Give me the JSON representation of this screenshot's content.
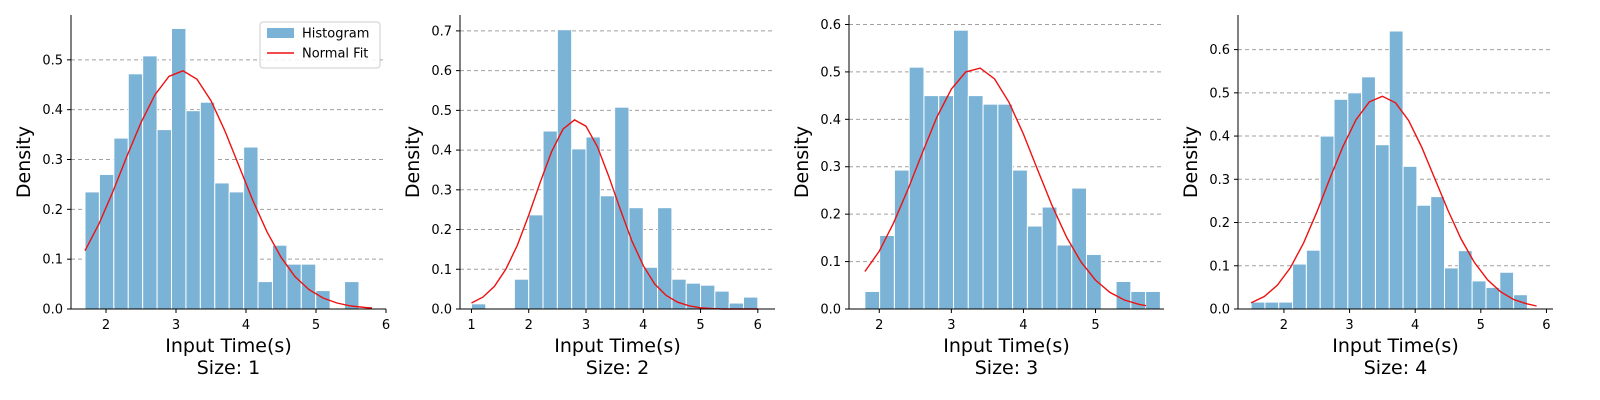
{
  "colors": {
    "bar": "#7ab3d6",
    "fit": "#ee1111",
    "grid": "#a0a0a0",
    "axis": "#000000"
  },
  "legend": {
    "histogram": "Histogram",
    "normal_fit": "Normal Fit",
    "placement": "upper-right of first panel"
  },
  "chart_data": [
    {
      "type": "bar",
      "title": "Size: 1",
      "xlabel": "Input Time(s)",
      "ylabel": "Density",
      "xlim": [
        1.5,
        6.0
      ],
      "ylim": [
        0,
        0.59
      ],
      "xticks": [
        2,
        3,
        4,
        5,
        6
      ],
      "yticks": [
        0.0,
        0.1,
        0.2,
        0.3,
        0.4,
        0.5
      ],
      "ytick_labels": [
        "0.0",
        "0.1",
        "0.2",
        "0.3",
        "0.4",
        "0.5"
      ],
      "grid": "y dashed",
      "bin_start": 1.7,
      "bin_width": 0.206,
      "values": [
        0.235,
        0.27,
        0.343,
        0.472,
        0.508,
        0.36,
        0.563,
        0.398,
        0.415,
        0.253,
        0.235,
        0.325,
        0.055,
        0.128,
        0.09,
        0.09,
        0.037,
        0.0,
        0.055
      ],
      "fit_x": [
        1.7,
        1.9,
        2.1,
        2.3,
        2.5,
        2.7,
        2.9,
        3.1,
        3.3,
        3.5,
        3.7,
        3.9,
        4.1,
        4.3,
        4.5,
        4.7,
        4.9,
        5.1,
        5.3,
        5.5,
        5.7,
        5.8
      ],
      "fit_y": [
        0.117,
        0.171,
        0.236,
        0.307,
        0.374,
        0.43,
        0.467,
        0.478,
        0.461,
        0.418,
        0.357,
        0.287,
        0.217,
        0.155,
        0.104,
        0.065,
        0.039,
        0.022,
        0.012,
        0.006,
        0.003,
        0.002
      ],
      "show_legend": true
    },
    {
      "type": "bar",
      "title": "Size: 2",
      "xlabel": "Input Time(s)",
      "ylabel": "Density",
      "xlim": [
        0.8,
        6.3
      ],
      "ylim": [
        0,
        0.74
      ],
      "xticks": [
        1,
        2,
        3,
        4,
        5,
        6
      ],
      "yticks": [
        0.0,
        0.1,
        0.2,
        0.3,
        0.4,
        0.5,
        0.6,
        0.7
      ],
      "ytick_labels": [
        "0.0",
        "0.1",
        "0.2",
        "0.3",
        "0.4",
        "0.5",
        "0.6",
        "0.7"
      ],
      "grid": "y dashed",
      "bin_start": 1.0,
      "bin_width": 0.25,
      "values": [
        0.013,
        0.0,
        0.0,
        0.075,
        0.237,
        0.448,
        0.703,
        0.403,
        0.433,
        0.285,
        0.508,
        0.255,
        0.105,
        0.255,
        0.075,
        0.065,
        0.06,
        0.045,
        0.015,
        0.03
      ],
      "fit_x": [
        1.0,
        1.2,
        1.4,
        1.6,
        1.8,
        2.0,
        2.2,
        2.4,
        2.6,
        2.8,
        3.0,
        3.2,
        3.4,
        3.6,
        3.8,
        4.0,
        4.2,
        4.4,
        4.6,
        4.8,
        5.0,
        5.2,
        5.4,
        5.6,
        5.8,
        6.0
      ],
      "fit_y": [
        0.015,
        0.03,
        0.057,
        0.1,
        0.16,
        0.236,
        0.319,
        0.396,
        0.453,
        0.476,
        0.46,
        0.408,
        0.333,
        0.25,
        0.172,
        0.109,
        0.063,
        0.034,
        0.017,
        0.008,
        0.003,
        0.001,
        0.0,
        0.0,
        0.0,
        0.0
      ],
      "show_legend": false
    },
    {
      "type": "bar",
      "title": "Size: 3",
      "xlabel": "Input Time(s)",
      "ylabel": "Density",
      "xlim": [
        1.58,
        5.95
      ],
      "ylim": [
        0,
        0.62
      ],
      "xticks": [
        2,
        3,
        4,
        5
      ],
      "yticks": [
        0.0,
        0.1,
        0.2,
        0.3,
        0.4,
        0.5,
        0.6
      ],
      "ytick_labels": [
        "0.0",
        "0.1",
        "0.2",
        "0.3",
        "0.4",
        "0.5",
        "0.6"
      ],
      "grid": "y dashed",
      "bin_start": 1.8,
      "bin_width": 0.205,
      "values": [
        0.037,
        0.155,
        0.293,
        0.51,
        0.45,
        0.45,
        0.588,
        0.45,
        0.432,
        0.432,
        0.293,
        0.175,
        0.215,
        0.135,
        0.255,
        0.115,
        0.0,
        0.058,
        0.037,
        0.037
      ],
      "fit_x": [
        1.8,
        2.0,
        2.2,
        2.4,
        2.6,
        2.8,
        3.0,
        3.2,
        3.4,
        3.6,
        3.8,
        4.0,
        4.2,
        4.4,
        4.6,
        4.8,
        5.0,
        5.2,
        5.4,
        5.6,
        5.7
      ],
      "fit_y": [
        0.079,
        0.122,
        0.182,
        0.253,
        0.33,
        0.405,
        0.464,
        0.5,
        0.508,
        0.485,
        0.436,
        0.369,
        0.292,
        0.217,
        0.151,
        0.099,
        0.061,
        0.035,
        0.019,
        0.01,
        0.007
      ],
      "show_legend": false
    },
    {
      "type": "bar",
      "title": "Size: 4",
      "xlabel": "Input Time(s)",
      "ylabel": "Density",
      "xlim": [
        1.3,
        6.1
      ],
      "ylim": [
        0,
        0.68
      ],
      "xticks": [
        2,
        3,
        4,
        5,
        6
      ],
      "yticks": [
        0.0,
        0.1,
        0.2,
        0.3,
        0.4,
        0.5,
        0.6
      ],
      "ytick_labels": [
        "0.0",
        "0.1",
        "0.2",
        "0.3",
        "0.4",
        "0.5",
        "0.6"
      ],
      "grid": "y dashed",
      "bin_start": 1.5,
      "bin_width": 0.2105,
      "values": [
        0.016,
        0.016,
        0.016,
        0.104,
        0.136,
        0.4,
        0.485,
        0.5,
        0.537,
        0.38,
        0.643,
        0.33,
        0.24,
        0.26,
        0.095,
        0.135,
        0.065,
        0.05,
        0.085,
        0.033
      ],
      "fit_x": [
        1.5,
        1.7,
        1.9,
        2.1,
        2.3,
        2.5,
        2.7,
        2.9,
        3.1,
        3.3,
        3.5,
        3.7,
        3.9,
        4.1,
        4.3,
        4.5,
        4.7,
        4.9,
        5.1,
        5.3,
        5.5,
        5.7,
        5.85
      ],
      "fit_y": [
        0.014,
        0.029,
        0.055,
        0.096,
        0.153,
        0.224,
        0.302,
        0.376,
        0.438,
        0.479,
        0.492,
        0.477,
        0.436,
        0.374,
        0.301,
        0.228,
        0.162,
        0.108,
        0.068,
        0.04,
        0.022,
        0.012,
        0.007
      ],
      "show_legend": false
    }
  ]
}
